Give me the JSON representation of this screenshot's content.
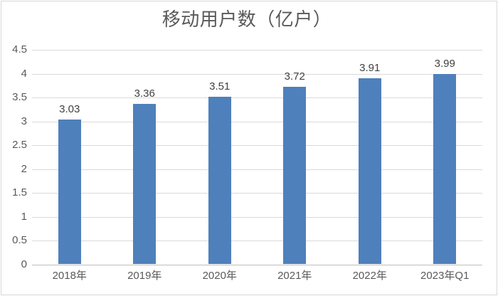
{
  "title": "移动用户数（亿户）",
  "colors": {
    "background": "#FFFFFF",
    "frame_border": "#D9D9D9",
    "gridline": "#D9D9D9",
    "axis": "#BFBFBF",
    "bar": "#4E80BC",
    "title_text": "#595959",
    "tick_text": "#595959",
    "data_label_text": "#404040"
  },
  "chart_data": {
    "type": "bar",
    "title": "移动用户数（亿户）",
    "categories": [
      "2018年",
      "2019年",
      "2020年",
      "2021年",
      "2022年",
      "2023年Q1"
    ],
    "values": [
      3.03,
      3.36,
      3.51,
      3.72,
      3.91,
      3.99
    ],
    "data_labels": [
      "3.03",
      "3.36",
      "3.51",
      "3.72",
      "3.91",
      "3.99"
    ],
    "xlabel": "",
    "ylabel": "",
    "ylim": [
      0,
      4.5
    ],
    "y_tick_step": 0.5,
    "y_tick_labels": [
      "0",
      "0.5",
      "1",
      "1.5",
      "2",
      "2.5",
      "3",
      "3.5",
      "4",
      "4.5"
    ],
    "grid": true,
    "legend_position": "none"
  }
}
